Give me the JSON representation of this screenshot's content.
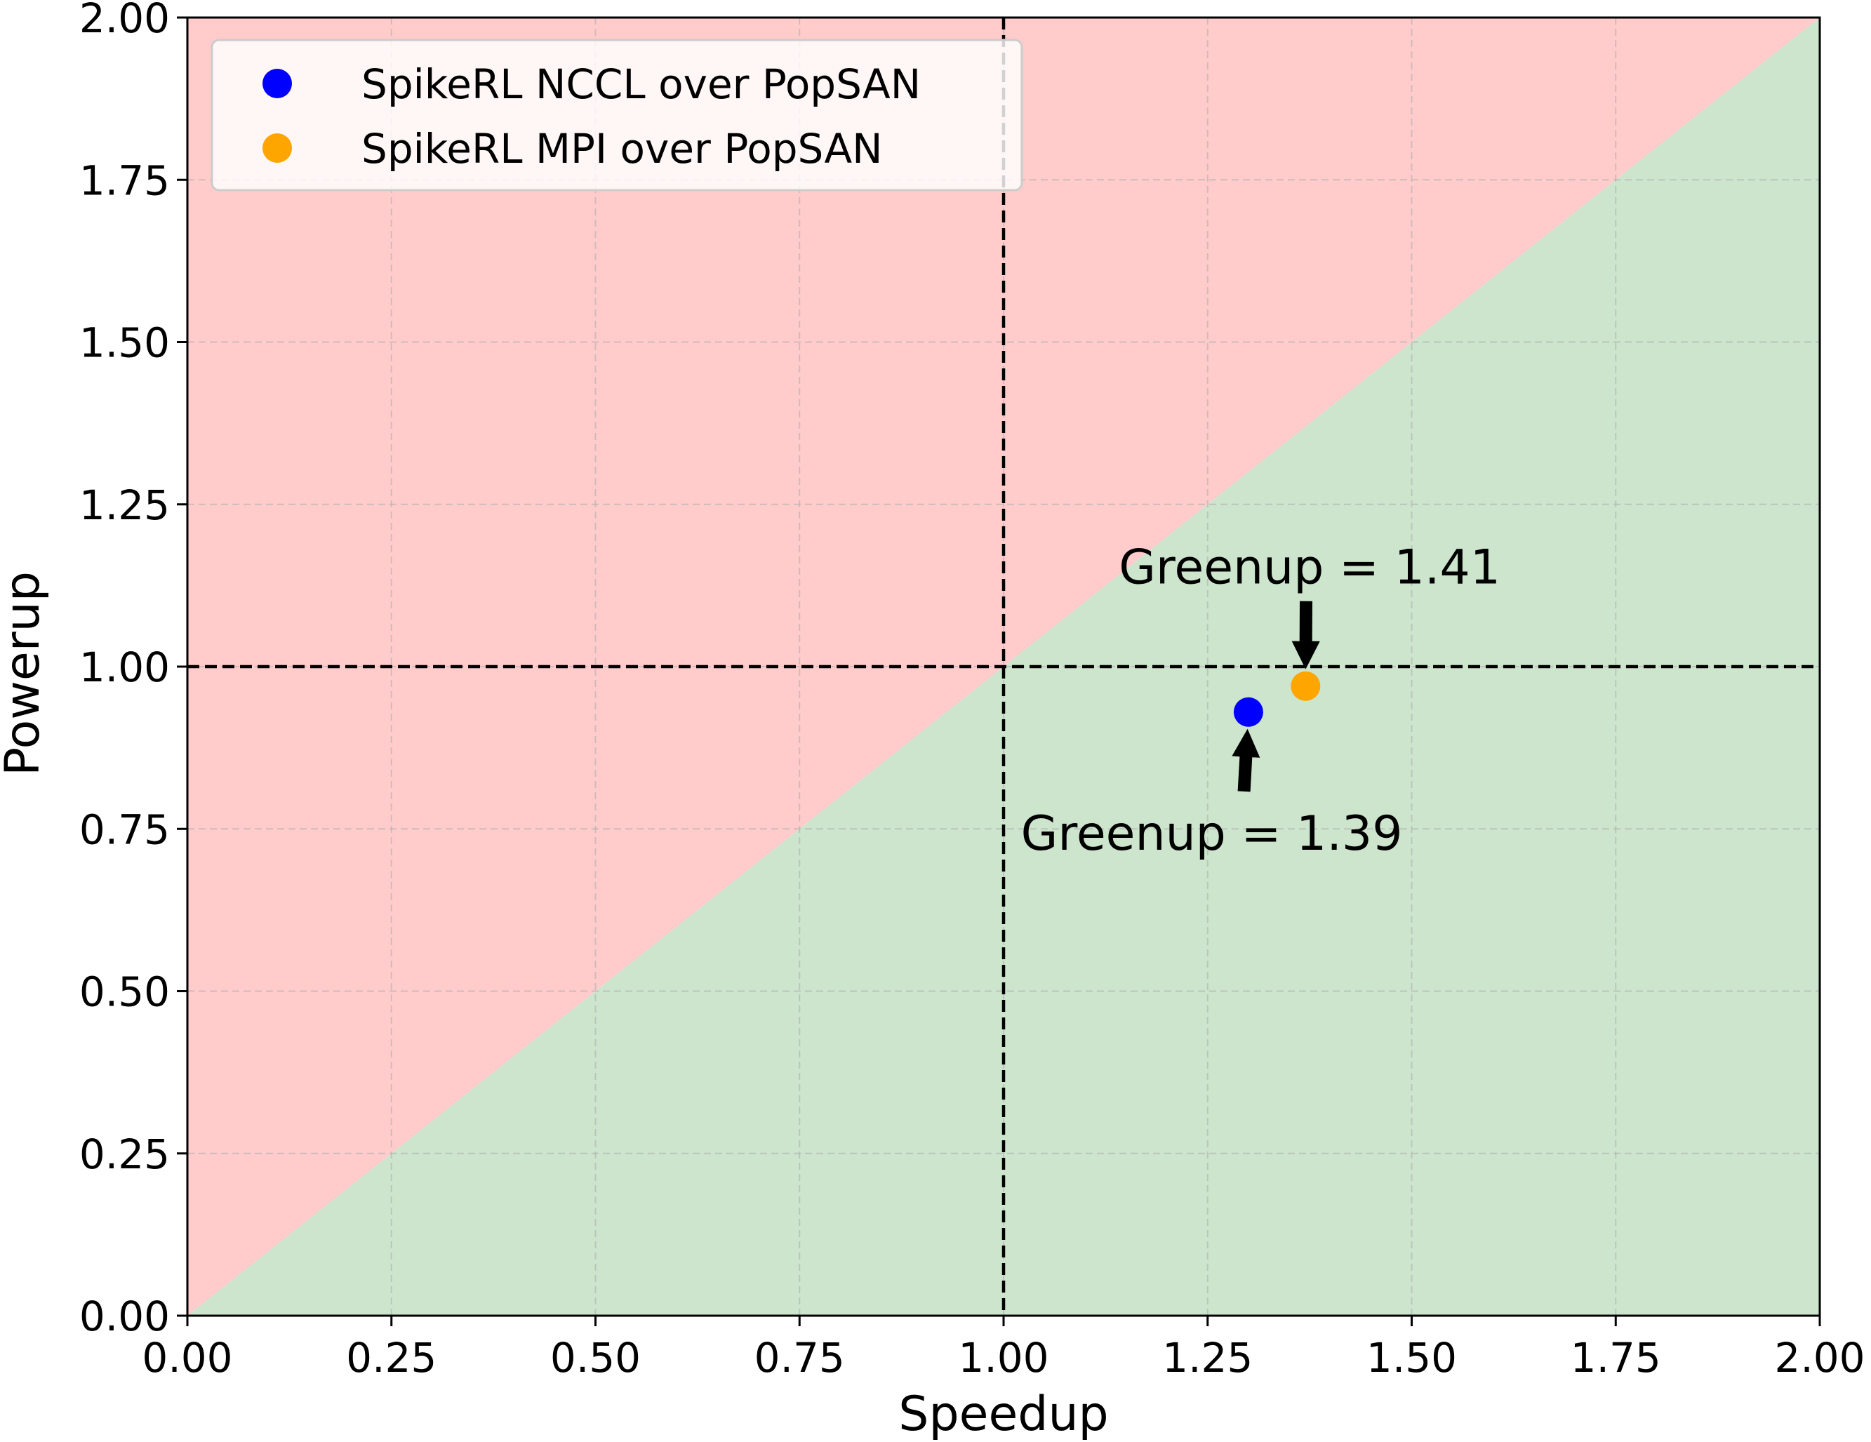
{
  "chart_data": {
    "type": "scatter",
    "xlabel": "Speedup",
    "ylabel": "Powerup",
    "xlim": [
      0,
      2
    ],
    "ylim": [
      0,
      2
    ],
    "x_ticks": [
      "0.00",
      "0.25",
      "0.50",
      "0.75",
      "1.00",
      "1.25",
      "1.50",
      "1.75",
      "2.00"
    ],
    "y_ticks": [
      "0.00",
      "0.25",
      "0.50",
      "0.75",
      "1.00",
      "1.25",
      "1.50",
      "1.75",
      "2.00"
    ],
    "grid": true,
    "legend_position": "top-left",
    "reference_lines": {
      "vertical_x": 1.0,
      "horizontal_y": 1.0,
      "style": "dashed"
    },
    "regions": [
      {
        "label": "above-diagonal",
        "color": "#ffcccb"
      },
      {
        "label": "below-diagonal",
        "color": "#cce5cc"
      }
    ],
    "series": [
      {
        "name": "SpikeRL NCCL over PopSAN",
        "color": "#0000ff",
        "points": [
          {
            "x": 1.3,
            "y": 0.93
          }
        ]
      },
      {
        "name": "SpikeRL MPI over PopSAN",
        "color": "#ffa500",
        "points": [
          {
            "x": 1.37,
            "y": 0.97
          }
        ]
      }
    ],
    "annotations": [
      {
        "text": "Greenup = 1.41",
        "point": {
          "x": 1.37,
          "y": 0.97
        },
        "label_at": {
          "x": 1.375,
          "y": 1.155
        }
      },
      {
        "text": "Greenup = 1.39",
        "point": {
          "x": 1.3,
          "y": 0.93
        },
        "label_at": {
          "x": 1.255,
          "y": 0.745
        }
      }
    ]
  }
}
